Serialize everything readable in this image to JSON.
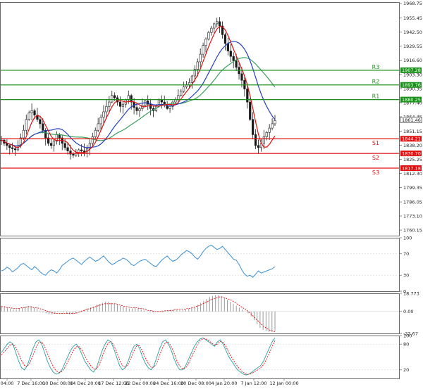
{
  "chart_data": [
    {
      "type": "candlestick",
      "panel": "price",
      "ylim": [
        1755,
        1970
      ],
      "y_ticks": [
        "1968.75",
        "1955.45",
        "1942.50",
        "1929.55",
        "1916.60",
        "1903.30",
        "1890.35",
        "1877.40",
        "1864.45",
        "1851.15",
        "1838.20",
        "1825.25",
        "1812.30",
        "1799.35",
        "1786.05",
        "1773.10",
        "1760.15"
      ],
      "x_ticks": [
        "04:00",
        "7 Dec 16:00",
        "10 Dec 08:00",
        "14 Dec 20:00",
        "17 Dec 12:00",
        "22 Dec 00:00",
        "24 Dec 16:00",
        "30 Dec 08:00",
        "4 Jan 20:00",
        "7 Jan 12:00",
        "12 Jan 00:00"
      ],
      "current_price": {
        "label": "1861.46",
        "value": 1861.46,
        "color": "#222222"
      },
      "levels": [
        {
          "name": "R3",
          "label": "1907.28",
          "value": 1907.28,
          "color": "#1a8f1a"
        },
        {
          "name": "R2",
          "label": "1893.76",
          "value": 1893.76,
          "color": "#1a8f1a"
        },
        {
          "name": "R1",
          "label": "1880.25",
          "value": 1880.25,
          "color": "#1a8f1a"
        },
        {
          "name": "S1",
          "label": "1844.21",
          "value": 1844.21,
          "color": "#e01010"
        },
        {
          "name": "S2",
          "label": "1830.70",
          "value": 1830.7,
          "color": "#e01010"
        },
        {
          "name": "S3",
          "label": "1817.18",
          "value": 1817.18,
          "color": "#e01010"
        }
      ],
      "close_path": [
        1843,
        1840,
        1838,
        1836,
        1835,
        1834,
        1838,
        1845,
        1852,
        1862,
        1868,
        1870,
        1866,
        1862,
        1858,
        1852,
        1845,
        1840,
        1838,
        1842,
        1848,
        1845,
        1840,
        1836,
        1833,
        1830,
        1829,
        1831,
        1834,
        1833,
        1831,
        1835,
        1840,
        1846,
        1852,
        1858,
        1864,
        1869,
        1874,
        1878,
        1884,
        1882,
        1878,
        1874,
        1876,
        1880,
        1884,
        1878,
        1873,
        1870,
        1872,
        1875,
        1879,
        1876,
        1872,
        1870,
        1874,
        1880,
        1878,
        1875,
        1872,
        1874,
        1878,
        1880,
        1884,
        1888,
        1892,
        1894,
        1896,
        1902,
        1908,
        1915,
        1922,
        1930,
        1936,
        1942,
        1946,
        1950,
        1952,
        1948,
        1940,
        1932,
        1925,
        1920,
        1916,
        1910,
        1904,
        1898,
        1890,
        1878,
        1862,
        1848,
        1838,
        1836,
        1840,
        1846,
        1850,
        1854,
        1858,
        1861
      ],
      "colors": {
        "up": "#1a1a1a",
        "down": "#1a1a1a",
        "red_ma": "#e01010",
        "blue_ma": "#2540c0",
        "green_ma": "#3aa060"
      }
    },
    {
      "type": "line",
      "panel": "indicator-1",
      "name": "",
      "ylim": [
        0,
        100
      ],
      "y_ticks": [
        "100",
        "70",
        "30",
        "0"
      ],
      "values": [
        38,
        40,
        45,
        42,
        36,
        40,
        44,
        50,
        52,
        48,
        44,
        40,
        46,
        42,
        36,
        32,
        30,
        36,
        40,
        38,
        34,
        40,
        48,
        52,
        56,
        60,
        62,
        58,
        54,
        50,
        56,
        60,
        64,
        60,
        56,
        58,
        62,
        66,
        60,
        54,
        50,
        52,
        56,
        58,
        62,
        60,
        56,
        50,
        48,
        52,
        56,
        58,
        60,
        56,
        52,
        48,
        46,
        52,
        58,
        62,
        66,
        60,
        56,
        58,
        62,
        68,
        72,
        76,
        74,
        70,
        64,
        60,
        66,
        74,
        80,
        84,
        86,
        82,
        78,
        80,
        84,
        78,
        72,
        66,
        60,
        58,
        50,
        40,
        32,
        28,
        30,
        26,
        32,
        38,
        34,
        36,
        38,
        40,
        42,
        46
      ],
      "color": "#3a8fd0"
    },
    {
      "type": "histogram",
      "panel": "indicator-2",
      "name": "",
      "ylim": [
        -22.67,
        18.773
      ],
      "y_ticks": [
        "18.773",
        "0.00",
        "-22.67"
      ],
      "values": [
        6,
        5,
        4,
        3,
        2,
        2,
        3,
        4,
        5,
        6,
        5,
        4,
        3,
        1,
        -1,
        -2,
        -3,
        -3,
        -2,
        -1,
        0,
        -1,
        -2,
        -3,
        -3,
        -2,
        0,
        1,
        2,
        3,
        4,
        5,
        7,
        8,
        9,
        10,
        10,
        9,
        8,
        7,
        6,
        5,
        4,
        3,
        3,
        4,
        3,
        2,
        1,
        0,
        -1,
        -1,
        0,
        0,
        1,
        1,
        1,
        2,
        2,
        2,
        1,
        1,
        2,
        3,
        4,
        5,
        7,
        9,
        11,
        13,
        15,
        16,
        17,
        17,
        16,
        14,
        12,
        10,
        8,
        6,
        4,
        2,
        0,
        -2,
        -5,
        -9,
        -13,
        -17,
        -19,
        -20,
        -21,
        -21,
        -20
      ],
      "signal": [
        5,
        5,
        4,
        4,
        3,
        3,
        3,
        4,
        4,
        5,
        5,
        4,
        4,
        3,
        2,
        1,
        0,
        -1,
        -2,
        -2,
        -2,
        -2,
        -2,
        -2,
        -2,
        -2,
        -1,
        0,
        1,
        2,
        3,
        4,
        5,
        6,
        7,
        8,
        8,
        8,
        8,
        8,
        7,
        6,
        5,
        5,
        4,
        4,
        4,
        3,
        3,
        2,
        1,
        1,
        0,
        0,
        0,
        0,
        1,
        1,
        1,
        2,
        2,
        2,
        2,
        3,
        3,
        4,
        5,
        6,
        7,
        9,
        10,
        12,
        13,
        14,
        15,
        15,
        14,
        13,
        12,
        10,
        8,
        6,
        4,
        2,
        0,
        -3,
        -6,
        -9,
        -12,
        -15,
        -17,
        -19,
        -20,
        -21
      ],
      "colors": {
        "bars": "#9a9a9a",
        "signal": "#e01010"
      }
    },
    {
      "type": "line",
      "panel": "indicator-3",
      "name": "",
      "ylim": [
        0,
        100
      ],
      "y_ticks": [
        "100",
        "80",
        "20"
      ],
      "series": [
        {
          "values": [
            60,
            70,
            80,
            85,
            80,
            60,
            40,
            25,
            20,
            30,
            50,
            70,
            85,
            90,
            80,
            60,
            40,
            25,
            15,
            10,
            12,
            20,
            35,
            50,
            65,
            75,
            80,
            70,
            55,
            40,
            30,
            20,
            15,
            25,
            45,
            65,
            80,
            90,
            85,
            70,
            50,
            30,
            20,
            25,
            40,
            60,
            75,
            80,
            70,
            50,
            35,
            25,
            20,
            30,
            50,
            70,
            85,
            90,
            80,
            65,
            45,
            30,
            20,
            20,
            30,
            45,
            60,
            75,
            85,
            92,
            95,
            90,
            85,
            80,
            75,
            85,
            90,
            80,
            65,
            50,
            40,
            30,
            20,
            15,
            10,
            8,
            10,
            15,
            20,
            25,
            30,
            40,
            55,
            70,
            85,
            95
          ]
        },
        {
          "values": [
            55,
            62,
            70,
            78,
            80,
            72,
            58,
            42,
            30,
            28,
            38,
            55,
            72,
            84,
            85,
            75,
            58,
            42,
            28,
            18,
            14,
            16,
            25,
            38,
            52,
            65,
            74,
            74,
            65,
            52,
            40,
            30,
            22,
            22,
            32,
            50,
            68,
            82,
            86,
            78,
            62,
            44,
            30,
            26,
            32,
            48,
            64,
            76,
            76,
            64,
            48,
            35,
            26,
            26,
            36,
            55,
            72,
            84,
            85,
            74,
            58,
            40,
            28,
            22,
            25,
            35,
            50,
            64,
            78,
            88,
            93,
            92,
            88,
            83,
            78,
            80,
            86,
            84,
            74,
            60,
            48,
            38,
            28,
            20,
            14,
            10,
            10,
            12,
            16,
            20,
            25,
            32,
            44,
            58,
            74,
            88
          ]
        }
      ],
      "colors": [
        "#2aa0a0",
        "#e01010"
      ]
    }
  ]
}
